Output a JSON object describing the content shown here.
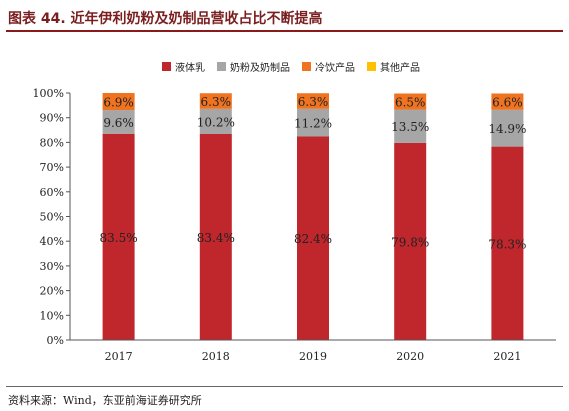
{
  "title": "图表 44. 近年伊利奶粉及奶制品营收占比不断提高",
  "source": "资料来源：Wind，东亚前海证券研究所",
  "chart_data": {
    "type": "bar",
    "stacked": true,
    "categories": [
      "2017",
      "2018",
      "2019",
      "2020",
      "2021"
    ],
    "series": [
      {
        "name": "液体乳",
        "color": "#c0272d",
        "values": [
          83.5,
          83.4,
          82.4,
          79.8,
          78.3
        ],
        "labels": [
          "83.5%",
          "83.4%",
          "82.4%",
          "79.8%",
          "78.3%"
        ]
      },
      {
        "name": "奶粉及奶制品",
        "color": "#a6a6a6",
        "values": [
          9.6,
          10.2,
          11.2,
          13.5,
          14.9
        ],
        "labels": [
          "9.6%",
          "10.2%",
          "11.2%",
          "13.5%",
          "14.9%"
        ]
      },
      {
        "name": "冷饮产品",
        "color": "#f07320",
        "values": [
          6.9,
          6.3,
          6.3,
          6.5,
          6.6
        ],
        "labels": [
          "6.9%",
          "6.3%",
          "6.3%",
          "6.5%",
          "6.6%"
        ]
      },
      {
        "name": "其他产品",
        "color": "#ffc000",
        "values": [
          0,
          0,
          0,
          0,
          0
        ],
        "labels": []
      }
    ],
    "ylim": [
      0,
      100
    ],
    "yticks": [
      0,
      10,
      20,
      30,
      40,
      50,
      60,
      70,
      80,
      90,
      100
    ],
    "ytick_labels": [
      "0%",
      "10%",
      "20%",
      "30%",
      "40%",
      "50%",
      "60%",
      "70%",
      "80%",
      "90%",
      "100%"
    ],
    "legend_position": "top-right",
    "grid": false
  }
}
